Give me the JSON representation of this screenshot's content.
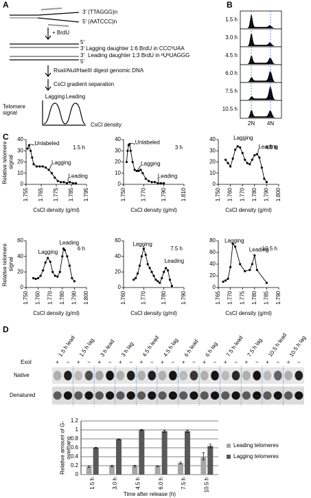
{
  "panel_labels": [
    "A",
    "B",
    "C",
    "D"
  ],
  "panel_a": {
    "top_strands": [
      "3′ (TTAGGG)n",
      "5′ (AATCCC)n"
    ],
    "step1": "+ BrdU",
    "daughter_ends": [
      "5′",
      "3′",
      "5′"
    ],
    "lagging_daughter": "3′ Lagging daughter 1:6 BrdU in CCCᵇUAA",
    "leading_daughter": "Leading daughter 1:3 BrdU in ᵇUᵇUAGGG",
    "step2": "RsaI/AluI/HaeIII digest genomic DNA",
    "step3": "CsCl gradient separation",
    "plot_ylabel": "Telomere signal",
    "peaks": [
      "Lagging",
      "Leading"
    ],
    "plot_xlabel": "CsCl density"
  },
  "panel_b": {
    "times": [
      "1.5 h",
      "3.0 h",
      "4.5 h",
      "6.0 h",
      "7.5 h",
      "10.5 h"
    ],
    "ploidy": [
      "2N",
      "4N"
    ]
  },
  "panel_d": {
    "lanes": [
      "1.5 h lead",
      "1.5 h lag",
      "3 h lead",
      "3 h lag",
      "4.5 h lead",
      "4.5 h lag",
      "6 h lead",
      "6 h lag",
      "7.5 h lead",
      "7.5 h lag",
      "10.5 h lead",
      "10.5 h lag"
    ],
    "exo_label": "ExoI",
    "exo": [
      "+",
      "−",
      "+",
      "−",
      "+",
      "−",
      "+",
      "−",
      "+",
      "−",
      "+",
      "−",
      "+",
      "−",
      "+",
      "−",
      "+",
      "−",
      "+",
      "−",
      "+",
      "−",
      "+",
      "−"
    ],
    "rows": [
      "Native",
      "Denatured"
    ]
  },
  "chart_data": [
    {
      "type": "line",
      "label": "1.5 h",
      "annotations": [
        "Unlabeled",
        "Lagging",
        "Leading"
      ],
      "ylabel": "Relative telomere signal",
      "xlabel": "CsCl density (g/ml)",
      "x": [
        1.756,
        1.757,
        1.758,
        1.759,
        1.76,
        1.762,
        1.764,
        1.766,
        1.768,
        1.77,
        1.772,
        1.774,
        1.776,
        1.778,
        1.78,
        1.782,
        1.784,
        1.786,
        1.788
      ],
      "values": [
        32,
        35,
        30,
        24,
        18,
        16,
        16,
        16,
        15,
        13,
        10,
        6,
        3,
        2,
        2,
        1,
        2,
        1,
        1
      ],
      "xlim": [
        1.755,
        1.795
      ],
      "xticks": [
        1.755,
        1.765,
        1.775,
        1.785,
        1.795
      ],
      "ylim": [
        0,
        40
      ],
      "yticks": [
        0,
        10,
        20,
        30,
        40
      ],
      "color": "#000000"
    },
    {
      "type": "line",
      "label": "3 h",
      "annotations": [
        "Unlabeled",
        "Lagging",
        "Leading"
      ],
      "xlabel": "CsCl density (g/ml)",
      "x": [
        1.753,
        1.754,
        1.755,
        1.756,
        1.757,
        1.759,
        1.761,
        1.763,
        1.765,
        1.767,
        1.769,
        1.772,
        1.775,
        1.778,
        1.781,
        1.784,
        1.787,
        1.79
      ],
      "values": [
        20,
        30,
        35,
        36,
        30,
        20,
        13,
        12,
        12,
        13,
        10,
        5,
        3,
        2,
        2,
        1,
        1,
        1
      ],
      "xlim": [
        1.75,
        1.81
      ],
      "xticks": [
        {
          "value": 1.75,
          "label": "1.750"
        },
        {
          "value": 1.77,
          "label": "1.770"
        },
        {
          "value": 1.79,
          "label": "1.790"
        },
        {
          "value": 1.81,
          "label": "1.810"
        }
      ],
      "ylim": [
        0,
        40
      ],
      "yticks": [
        0,
        10,
        20,
        30,
        40
      ],
      "color": "#000000"
    },
    {
      "type": "line",
      "label": "4.5 h",
      "annotations": [
        "Lagging",
        "Leading"
      ],
      "xlabel": "CsCl density (g/ml)",
      "x": [
        1.756,
        1.758,
        1.76,
        1.762,
        1.764,
        1.766,
        1.768,
        1.77,
        1.772,
        1.774,
        1.776,
        1.778,
        1.78,
        1.782,
        1.784,
        1.786,
        1.788,
        1.79
      ],
      "values": [
        22,
        19,
        16,
        23,
        31,
        34,
        33,
        28,
        22,
        19,
        18,
        22,
        26,
        27,
        24,
        15,
        5,
        2
      ],
      "xlim": [
        1.75,
        1.8
      ],
      "xticks": [
        {
          "value": 1.75,
          "label": "1.750"
        },
        {
          "value": 1.76,
          "label": "1.760"
        },
        {
          "value": 1.77,
          "label": "1.770"
        },
        {
          "value": 1.78,
          "label": "1.780"
        },
        {
          "value": 1.79,
          "label": "1.790"
        },
        {
          "value": 1.8,
          "label": "1.800"
        }
      ],
      "ylim": [
        0,
        40
      ],
      "yticks": [
        0,
        10,
        20,
        30,
        40
      ],
      "color": "#000000"
    },
    {
      "type": "line",
      "label": "6 h",
      "annotations": [
        "Lagging",
        "Leading"
      ],
      "ylabel": "Relative telomere signal",
      "xlabel": "CsCl density (g/ml)",
      "x": [
        1.756,
        1.758,
        1.76,
        1.762,
        1.764,
        1.766,
        1.768,
        1.77,
        1.772,
        1.774,
        1.776,
        1.778,
        1.78,
        1.781,
        1.782,
        1.784,
        1.786,
        1.788,
        1.79
      ],
      "values": [
        12,
        11,
        12,
        15,
        22,
        32,
        38,
        33,
        20,
        15,
        14,
        20,
        40,
        50,
        48,
        40,
        28,
        12,
        8
      ],
      "xlim": [
        1.75,
        1.8
      ],
      "xticks": [
        {
          "value": 1.75,
          "label": "1.750"
        },
        {
          "value": 1.76,
          "label": "1.760"
        },
        {
          "value": 1.77,
          "label": "1.770"
        },
        {
          "value": 1.78,
          "label": "1.780"
        },
        {
          "value": 1.79,
          "label": "1.790"
        },
        {
          "value": 1.8,
          "label": "1.800"
        }
      ],
      "ylim": [
        0,
        60
      ],
      "yticks": [
        0,
        20,
        40,
        60
      ],
      "color": "#000000"
    },
    {
      "type": "line",
      "label": "7.5 h",
      "annotations": [
        "Lagging",
        "Leading"
      ],
      "xlabel": "CsCl density (g/ml)",
      "x": [
        1.765,
        1.766,
        1.767,
        1.768,
        1.769,
        1.77,
        1.771,
        1.772,
        1.773,
        1.774,
        1.775,
        1.776,
        1.777,
        1.778,
        1.779,
        1.78,
        1.781,
        1.782,
        1.783,
        1.784
      ],
      "values": [
        10,
        12,
        18,
        28,
        40,
        50,
        42,
        30,
        25,
        20,
        15,
        10,
        8,
        6,
        12,
        20,
        25,
        22,
        10,
        2
      ],
      "xlim": [
        1.76,
        1.79
      ],
      "xticks": [
        {
          "value": 1.76,
          "label": "1.760"
        },
        {
          "value": 1.77,
          "label": "1.770"
        },
        {
          "value": 1.78,
          "label": "1.780"
        },
        {
          "value": 1.79,
          "label": "1.790"
        }
      ],
      "ylim": [
        0,
        60
      ],
      "yticks": [
        0,
        20,
        40,
        60
      ],
      "color": "#000000"
    },
    {
      "type": "line",
      "label": "10.5 h",
      "annotations": [
        "Lagging",
        "Leading"
      ],
      "xlabel": "CsCl density (g/ml)",
      "x": [
        1.767,
        1.768,
        1.769,
        1.77,
        1.771,
        1.772,
        1.774,
        1.776,
        1.778,
        1.779,
        1.78,
        1.781,
        1.785
      ],
      "values": [
        10,
        12,
        15,
        35,
        75,
        70,
        40,
        28,
        30,
        40,
        55,
        30,
        8
      ],
      "xlim": [
        1.765,
        1.79
      ],
      "xticks": [
        1.765,
        {
          "value": 1.77,
          "label": "1.770"
        },
        1.775,
        {
          "value": 1.78,
          "label": "1.780"
        },
        1.785,
        {
          "value": 1.79,
          "label": "1.790"
        }
      ],
      "ylim": [
        0,
        80
      ],
      "yticks": [
        0,
        20,
        40,
        60,
        80
      ],
      "color": "#000000"
    },
    {
      "type": "bar",
      "ylabel": "Relative amount of G-overhang",
      "xlabel": "Time after release (h)",
      "categories": [
        "1.5 h",
        "3.0 h",
        "4.5 h",
        "6.0 h",
        "7.5 h",
        "10.5 h"
      ],
      "series": [
        {
          "name": "Leading telomeres",
          "color": "#a6a6a6",
          "values": [
            0.18,
            0.19,
            0.19,
            0.19,
            0.26,
            0.41
          ],
          "errors": [
            0.02,
            0.02,
            0.02,
            0.01,
            0.02,
            0.08
          ]
        },
        {
          "name": "Lagging telomeres",
          "color": "#595959",
          "values": [
            0.6,
            0.79,
            1,
            0.97,
            0.97,
            0.64
          ],
          "errors": [
            0.01,
            0.01,
            0.01,
            0.02,
            0.02,
            0.04
          ]
        }
      ],
      "ylim": [
        0,
        1.2
      ],
      "yticks": [
        0,
        0.2,
        0.4,
        0.6,
        0.8,
        1,
        1.2
      ],
      "grid": true,
      "legend": "right"
    }
  ]
}
